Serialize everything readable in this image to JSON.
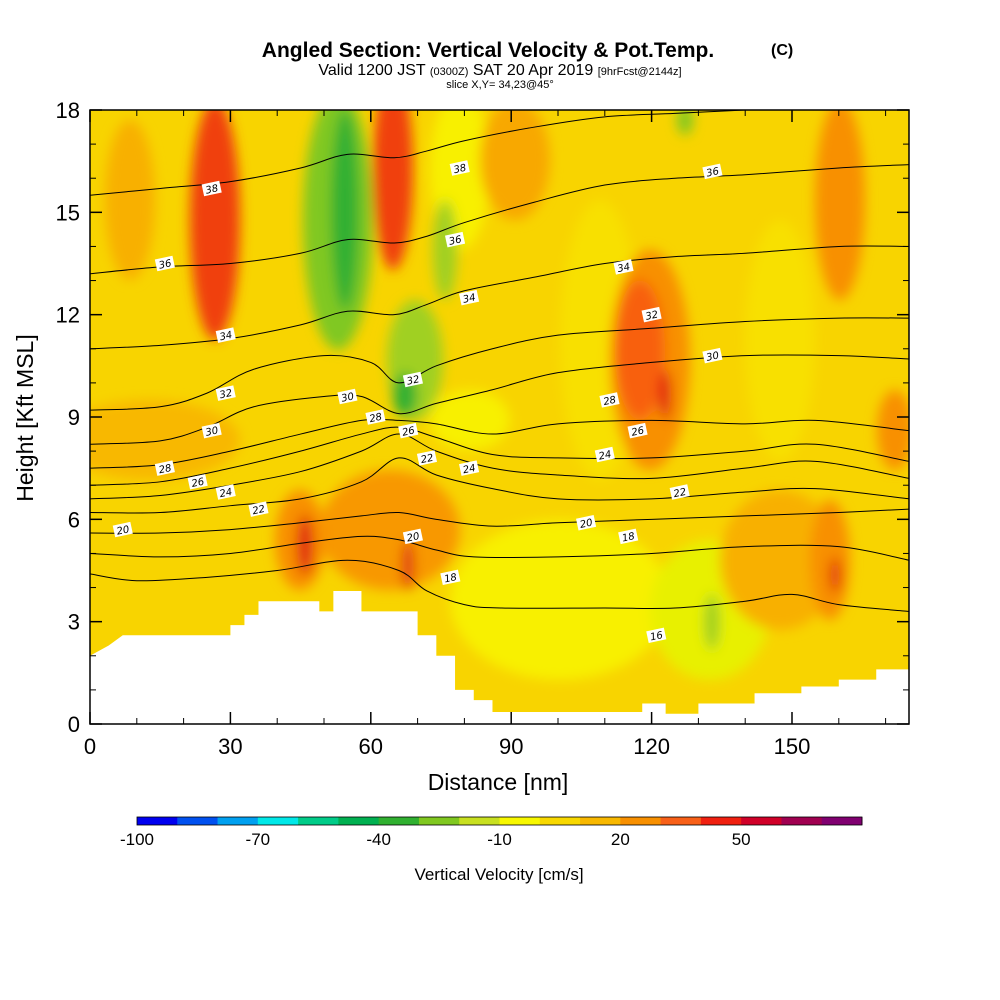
{
  "header": {
    "title": "Angled Section: Vertical Velocity & Pot.Temp.",
    "title_unit": "(C)",
    "valid_prefix": "Valid 1200 JST",
    "valid_utc": "(0300Z)",
    "valid_date": "SAT 20 Apr 2019",
    "forecast": "[9hrFcst@2144z]",
    "slice": "slice X,Y= 34,23@45°"
  },
  "chart_data": {
    "type": "heatmap",
    "xlabel": "Distance [nm]",
    "ylabel": "Height [Kft MSL]",
    "xlim": [
      0,
      175
    ],
    "ylim": [
      0,
      18
    ],
    "x_ticks": [
      0,
      30,
      60,
      90,
      120,
      150
    ],
    "y_ticks": [
      0,
      3,
      6,
      9,
      12,
      15,
      18
    ],
    "colorbar": {
      "label": "Vertical Velocity [cm/s]",
      "min": -100,
      "step": 10,
      "tick_values": [
        -100,
        -70,
        -40,
        -10,
        20,
        50
      ],
      "tick_labels": [
        "-100",
        "-70",
        "-40",
        "-10",
        "20",
        "50"
      ],
      "colors": [
        "#0000f0",
        "#0050f0",
        "#00a0f0",
        "#00e8e8",
        "#00cc88",
        "#00b050",
        "#30b030",
        "#80c820",
        "#c8e020",
        "#f8f800",
        "#f8d800",
        "#f8b800",
        "#f89000",
        "#f86018",
        "#f02010",
        "#d00028",
        "#a00050",
        "#800070"
      ]
    },
    "terrain": [
      [
        0,
        2
      ],
      [
        4,
        2.3
      ],
      [
        7,
        2.6
      ],
      [
        30,
        2.6
      ],
      [
        30,
        2.9
      ],
      [
        33,
        2.9
      ],
      [
        33,
        3.2
      ],
      [
        36,
        3.2
      ],
      [
        36,
        3.6
      ],
      [
        49,
        3.6
      ],
      [
        49,
        3.3
      ],
      [
        52,
        3.3
      ],
      [
        52,
        3.9
      ],
      [
        58,
        3.9
      ],
      [
        58,
        3.3
      ],
      [
        70,
        3.3
      ],
      [
        70,
        2.6
      ],
      [
        74,
        2.6
      ],
      [
        74,
        2.0
      ],
      [
        78,
        2.0
      ],
      [
        78,
        1.0
      ],
      [
        82,
        1.0
      ],
      [
        82,
        0.7
      ],
      [
        86,
        0.7
      ],
      [
        86,
        0.35
      ],
      [
        118,
        0.35
      ],
      [
        118,
        0.6
      ],
      [
        123,
        0.6
      ],
      [
        123,
        0.3
      ],
      [
        130,
        0.3
      ],
      [
        130,
        0.6
      ],
      [
        142,
        0.6
      ],
      [
        142,
        0.9
      ],
      [
        152,
        0.9
      ],
      [
        152,
        1.1
      ],
      [
        160,
        1.1
      ],
      [
        160,
        1.3
      ],
      [
        168,
        1.3
      ],
      [
        168,
        1.6
      ],
      [
        175,
        1.6
      ]
    ],
    "theta_contours": [
      {
        "value": 16,
        "points": [
          [
            0,
            4.4
          ],
          [
            10,
            4.2
          ],
          [
            25,
            4.3
          ],
          [
            40,
            4.5
          ],
          [
            55,
            4.8
          ],
          [
            66,
            4.5
          ],
          [
            72,
            3.9
          ],
          [
            80,
            3.5
          ],
          [
            88,
            3.4
          ],
          [
            110,
            3.4
          ],
          [
            125,
            3.4
          ],
          [
            140,
            3.6
          ],
          [
            150,
            3.8
          ],
          [
            160,
            3.5
          ],
          [
            175,
            3.3
          ]
        ]
      },
      {
        "value": 18,
        "points": [
          [
            0,
            5.0
          ],
          [
            15,
            4.9
          ],
          [
            30,
            5.0
          ],
          [
            45,
            5.3
          ],
          [
            58,
            5.5
          ],
          [
            66,
            5.4
          ],
          [
            74,
            5.1
          ],
          [
            82,
            4.9
          ],
          [
            100,
            4.9
          ],
          [
            120,
            5.0
          ],
          [
            140,
            5.2
          ],
          [
            160,
            5.2
          ],
          [
            175,
            4.8
          ]
        ]
      },
      {
        "value": 20,
        "points": [
          [
            0,
            5.6
          ],
          [
            15,
            5.6
          ],
          [
            30,
            5.7
          ],
          [
            45,
            5.9
          ],
          [
            58,
            6.1
          ],
          [
            66,
            6.2
          ],
          [
            74,
            6.0
          ],
          [
            86,
            5.8
          ],
          [
            100,
            5.9
          ],
          [
            120,
            6.0
          ],
          [
            140,
            6.1
          ],
          [
            160,
            6.2
          ],
          [
            175,
            6.3
          ]
        ]
      },
      {
        "value": 22,
        "points": [
          [
            0,
            6.2
          ],
          [
            15,
            6.2
          ],
          [
            30,
            6.4
          ],
          [
            45,
            6.6
          ],
          [
            58,
            7.1
          ],
          [
            66,
            7.8
          ],
          [
            74,
            7.3
          ],
          [
            86,
            6.9
          ],
          [
            100,
            6.6
          ],
          [
            120,
            6.6
          ],
          [
            140,
            6.8
          ],
          [
            155,
            6.9
          ],
          [
            175,
            6.6
          ]
        ]
      },
      {
        "value": 24,
        "points": [
          [
            0,
            6.6
          ],
          [
            15,
            6.7
          ],
          [
            30,
            7.0
          ],
          [
            45,
            7.4
          ],
          [
            58,
            8.0
          ],
          [
            66,
            8.5
          ],
          [
            74,
            8.0
          ],
          [
            86,
            7.5
          ],
          [
            100,
            7.3
          ],
          [
            120,
            7.2
          ],
          [
            140,
            7.5
          ],
          [
            155,
            7.7
          ],
          [
            175,
            7.2
          ]
        ]
      },
      {
        "value": 26,
        "points": [
          [
            0,
            7.0
          ],
          [
            15,
            7.1
          ],
          [
            30,
            7.5
          ],
          [
            45,
            8.0
          ],
          [
            58,
            8.5
          ],
          [
            66,
            8.7
          ],
          [
            74,
            8.4
          ],
          [
            86,
            7.9
          ],
          [
            100,
            7.8
          ],
          [
            120,
            7.8
          ],
          [
            140,
            8.0
          ],
          [
            155,
            8.2
          ],
          [
            175,
            7.7
          ]
        ]
      },
      {
        "value": 28,
        "points": [
          [
            0,
            7.5
          ],
          [
            15,
            7.6
          ],
          [
            30,
            8.0
          ],
          [
            45,
            8.5
          ],
          [
            58,
            8.9
          ],
          [
            66,
            8.9
          ],
          [
            74,
            8.8
          ],
          [
            86,
            8.5
          ],
          [
            100,
            8.8
          ],
          [
            120,
            8.9
          ],
          [
            140,
            8.8
          ],
          [
            155,
            8.9
          ],
          [
            175,
            8.6
          ]
        ]
      },
      {
        "value": 30,
        "points": [
          [
            0,
            8.2
          ],
          [
            15,
            8.3
          ],
          [
            25,
            8.7
          ],
          [
            35,
            9.3
          ],
          [
            50,
            9.6
          ],
          [
            58,
            9.6
          ],
          [
            66,
            9.1
          ],
          [
            74,
            9.4
          ],
          [
            86,
            9.8
          ],
          [
            100,
            10.3
          ],
          [
            120,
            10.6
          ],
          [
            140,
            10.8
          ],
          [
            160,
            10.8
          ],
          [
            175,
            10.7
          ]
        ]
      },
      {
        "value": 32,
        "points": [
          [
            0,
            9.2
          ],
          [
            15,
            9.3
          ],
          [
            25,
            9.7
          ],
          [
            35,
            10.4
          ],
          [
            50,
            10.8
          ],
          [
            60,
            10.6
          ],
          [
            66,
            10.0
          ],
          [
            74,
            10.5
          ],
          [
            86,
            11.0
          ],
          [
            100,
            11.4
          ],
          [
            120,
            11.6
          ],
          [
            140,
            11.8
          ],
          [
            160,
            11.9
          ],
          [
            175,
            11.9
          ]
        ]
      },
      {
        "value": 34,
        "points": [
          [
            0,
            11.0
          ],
          [
            15,
            11.1
          ],
          [
            30,
            11.3
          ],
          [
            45,
            11.7
          ],
          [
            55,
            12.1
          ],
          [
            65,
            12.0
          ],
          [
            72,
            12.3
          ],
          [
            80,
            12.7
          ],
          [
            95,
            13.1
          ],
          [
            110,
            13.5
          ],
          [
            125,
            13.7
          ],
          [
            140,
            13.8
          ],
          [
            160,
            14.0
          ],
          [
            175,
            14.0
          ]
        ]
      },
      {
        "value": 36,
        "points": [
          [
            0,
            13.2
          ],
          [
            15,
            13.4
          ],
          [
            30,
            13.5
          ],
          [
            45,
            13.8
          ],
          [
            55,
            14.2
          ],
          [
            65,
            14.1
          ],
          [
            72,
            14.3
          ],
          [
            80,
            14.7
          ],
          [
            95,
            15.3
          ],
          [
            110,
            15.8
          ],
          [
            125,
            16.0
          ],
          [
            140,
            16.1
          ],
          [
            160,
            16.3
          ],
          [
            175,
            16.4
          ]
        ]
      },
      {
        "value": 38,
        "points": [
          [
            0,
            15.5
          ],
          [
            15,
            15.7
          ],
          [
            30,
            15.9
          ],
          [
            45,
            16.3
          ],
          [
            55,
            16.7
          ],
          [
            65,
            16.6
          ],
          [
            72,
            16.8
          ],
          [
            80,
            17.1
          ],
          [
            95,
            17.5
          ],
          [
            110,
            17.8
          ],
          [
            125,
            17.9
          ],
          [
            140,
            18.0
          ]
        ]
      }
    ],
    "contour_labels": [
      {
        "text": "38",
        "x": 26,
        "y": 15.7
      },
      {
        "text": "38",
        "x": 79,
        "y": 16.3
      },
      {
        "text": "36",
        "x": 133,
        "y": 16.2
      },
      {
        "text": "36",
        "x": 16,
        "y": 13.5
      },
      {
        "text": "36",
        "x": 78,
        "y": 14.2
      },
      {
        "text": "34",
        "x": 114,
        "y": 13.4
      },
      {
        "text": "34",
        "x": 81,
        "y": 12.5
      },
      {
        "text": "32",
        "x": 120,
        "y": 12.0
      },
      {
        "text": "34",
        "x": 29,
        "y": 11.4
      },
      {
        "text": "30",
        "x": 133,
        "y": 10.8
      },
      {
        "text": "32",
        "x": 69,
        "y": 10.1
      },
      {
        "text": "32",
        "x": 29,
        "y": 9.7
      },
      {
        "text": "30",
        "x": 55,
        "y": 9.6
      },
      {
        "text": "28",
        "x": 111,
        "y": 9.5
      },
      {
        "text": "28",
        "x": 61,
        "y": 9.0
      },
      {
        "text": "26",
        "x": 68,
        "y": 8.6
      },
      {
        "text": "26",
        "x": 117,
        "y": 8.6
      },
      {
        "text": "30",
        "x": 26,
        "y": 8.6
      },
      {
        "text": "24",
        "x": 110,
        "y": 7.9
      },
      {
        "text": "22",
        "x": 72,
        "y": 7.8
      },
      {
        "text": "24",
        "x": 81,
        "y": 7.5
      },
      {
        "text": "28",
        "x": 16,
        "y": 7.5
      },
      {
        "text": "26",
        "x": 23,
        "y": 7.1
      },
      {
        "text": "24",
        "x": 29,
        "y": 6.8
      },
      {
        "text": "22",
        "x": 126,
        "y": 6.8
      },
      {
        "text": "22",
        "x": 36,
        "y": 6.3
      },
      {
        "text": "20",
        "x": 106,
        "y": 5.9
      },
      {
        "text": "18",
        "x": 115,
        "y": 5.5
      },
      {
        "text": "20",
        "x": 7,
        "y": 5.7
      },
      {
        "text": "20",
        "x": 69,
        "y": 5.5
      },
      {
        "text": "18",
        "x": 77,
        "y": 4.3
      },
      {
        "text": "16",
        "x": 121,
        "y": 2.6
      }
    ]
  }
}
